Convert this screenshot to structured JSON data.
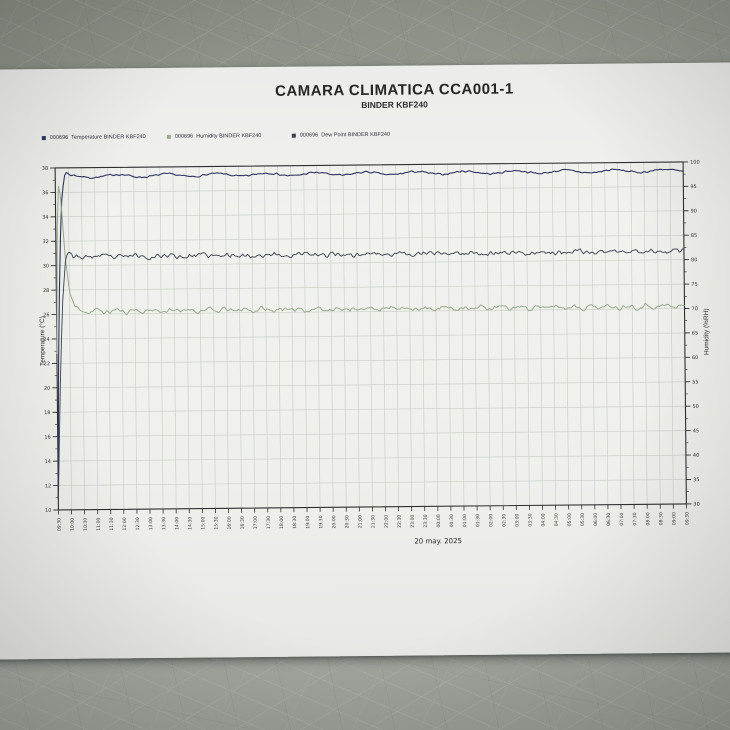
{
  "chart_data": {
    "type": "line",
    "title": "CAMARA CLIMATICA CCA001-1",
    "subtitle": "BINDER KBF240",
    "date_label": "20 may. 2025",
    "grid": true,
    "legend_position": "top-left",
    "x_axis": {
      "start_hour": 9.5,
      "end_hour": 33.5,
      "tick_step_hours": 0.5,
      "ticklabels": [
        "09:30",
        "10:00",
        "10:30",
        "11:00",
        "11:30",
        "12:00",
        "12:30",
        "13:00",
        "13:30",
        "14:00",
        "14:30",
        "15:00",
        "15:30",
        "16:00",
        "16:30",
        "17:00",
        "17:30",
        "18:00",
        "18:30",
        "19:00",
        "19:30",
        "20:00",
        "20:30",
        "21:00",
        "21:30",
        "22:00",
        "22:30",
        "23:00",
        "23:30",
        "00:00",
        "00:30",
        "01:00",
        "01:30",
        "02:00",
        "02:30",
        "03:00",
        "03:30",
        "04:00",
        "04:30",
        "05:00",
        "05:30",
        "06:00",
        "06:30",
        "07:00",
        "07:30",
        "08:00",
        "08:30",
        "09:00",
        "09:30"
      ]
    },
    "y_left": {
      "label": "Temperature (°C)",
      "min": 10,
      "max": 38,
      "tick_step": 2,
      "ticklabels": [
        "38",
        "36",
        "34",
        "32",
        "30",
        "28",
        "26",
        "24",
        "22",
        "20",
        "18",
        "16",
        "14",
        "12",
        "10"
      ]
    },
    "y_right": {
      "label": "Humidity (%RH)",
      "min": 30,
      "max": 100,
      "tick_step": 5,
      "ticklabels": [
        "100",
        "95",
        "90",
        "85",
        "80",
        "75",
        "70",
        "65",
        "60",
        "55",
        "50",
        "45",
        "40",
        "35",
        "30"
      ]
    },
    "series": [
      {
        "key": "temperature",
        "legend_label": "000696  Temperature BINDER KBF240",
        "axis": "left",
        "color": "#2e3462",
        "width": 1.1,
        "noise": 0.09,
        "wave_amp": 0.12,
        "wave_period": 1.9,
        "seed": 7,
        "keypoints": [
          [
            9.5,
            11
          ],
          [
            9.56,
            22
          ],
          [
            9.65,
            31
          ],
          [
            9.75,
            35.8
          ],
          [
            9.88,
            37.6
          ],
          [
            10.05,
            37.3
          ],
          [
            33.5,
            37.3
          ]
        ],
        "steady_state": {
          "value": 37.3,
          "unit": "°C"
        }
      },
      {
        "key": "humidity",
        "legend_label": "000696  Humidity BINDER KBF240",
        "axis": "right",
        "color": "#98ab8d",
        "width": 1.0,
        "noise": 0.55,
        "wave_amp": 0.3,
        "wave_period": 0.7,
        "seed": 11,
        "keypoints": [
          [
            9.5,
            62
          ],
          [
            9.56,
            88
          ],
          [
            9.63,
            97.5
          ],
          [
            9.72,
            92
          ],
          [
            9.85,
            82
          ],
          [
            10.0,
            75
          ],
          [
            10.2,
            71.5
          ],
          [
            10.5,
            70.6
          ],
          [
            33.5,
            70.5
          ]
        ],
        "steady_state": {
          "value": 70.5,
          "unit": "%RH"
        }
      },
      {
        "key": "dew-point",
        "legend_label": "000696  Dew Point BINDER KBF240",
        "axis": "left",
        "color": "#3b3f4e",
        "width": 0.9,
        "noise": 0.25,
        "wave_amp": 0.06,
        "wave_period": 1.3,
        "seed": 23,
        "keypoints": [
          [
            9.5,
            10.5
          ],
          [
            9.6,
            19
          ],
          [
            9.72,
            26.5
          ],
          [
            9.85,
            30.2
          ],
          [
            10.0,
            31.2
          ],
          [
            10.2,
            30.7
          ],
          [
            33.5,
            30.7
          ]
        ],
        "steady_state": {
          "value": 30.7,
          "unit": "°C"
        }
      }
    ]
  }
}
